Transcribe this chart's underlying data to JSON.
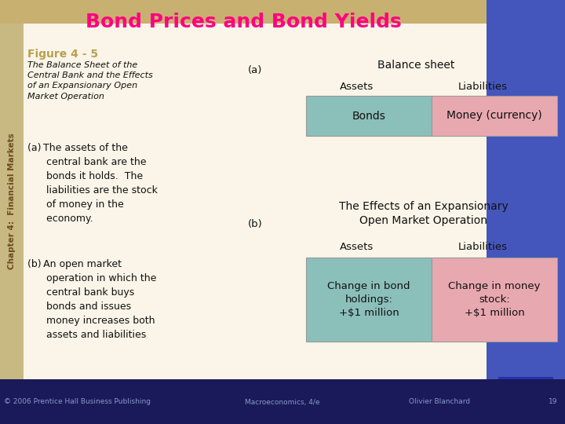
{
  "title": "Bond Prices and Bond Yields",
  "title_color": "#FF007F",
  "figure_label": "Figure 4 - 5",
  "figure_label_color": "#B8A050",
  "subtitle_italic": "The Balance Sheet of the\nCentral Bank and the Effects\nof an Expansionary Open\nMarket Operation",
  "body_text_a": "(a) The assets of the\n      central bank are the\n      bonds it holds.  The\n      liabilities are the stock\n      of money in the\n      economy.",
  "body_text_b": "(b) An open market\n      operation in which the\n      central bank buys\n      bonds and issues\n      money increases both\n      assets and liabilities",
  "label_a": "(a)",
  "label_b": "(b)",
  "table_a_title": "Balance sheet",
  "table_a_col1_header": "Assets",
  "table_a_col2_header": "Liabilities",
  "table_a_cell1": "Bonds",
  "table_a_cell2": "Money (currency)",
  "table_b_title": "The Effects of an Expansionary\nOpen Market Operation",
  "table_b_col1_header": "Assets",
  "table_b_col2_header": "Liabilities",
  "table_b_cell1": "Change in bond\nholdings:\n+$1 million",
  "table_b_cell2": "Change in money\nstock:\n+$1 million",
  "cell_color_left": "#8BBFBA",
  "cell_color_right": "#E8A8B0",
  "sidebar_color": "#C8B882",
  "sidebar_text": "Chapter 4:  Financial Markets",
  "sidebar_text_color": "#6B4C1E",
  "title_bg": "#C8B882",
  "content_bg": "#FAF5E8",
  "footer_bg": "#1A1A5A",
  "footer_text1": "© 2006 Prentice Hall Business Publishing",
  "footer_text2": "Macroeconomics, 4/e",
  "footer_text3": "Olivier Blanchard",
  "footer_text4": "19",
  "footer_text_color": "#8899CC",
  "corner_bg1": "#4455AA",
  "corner_bg2": "#2233AA"
}
